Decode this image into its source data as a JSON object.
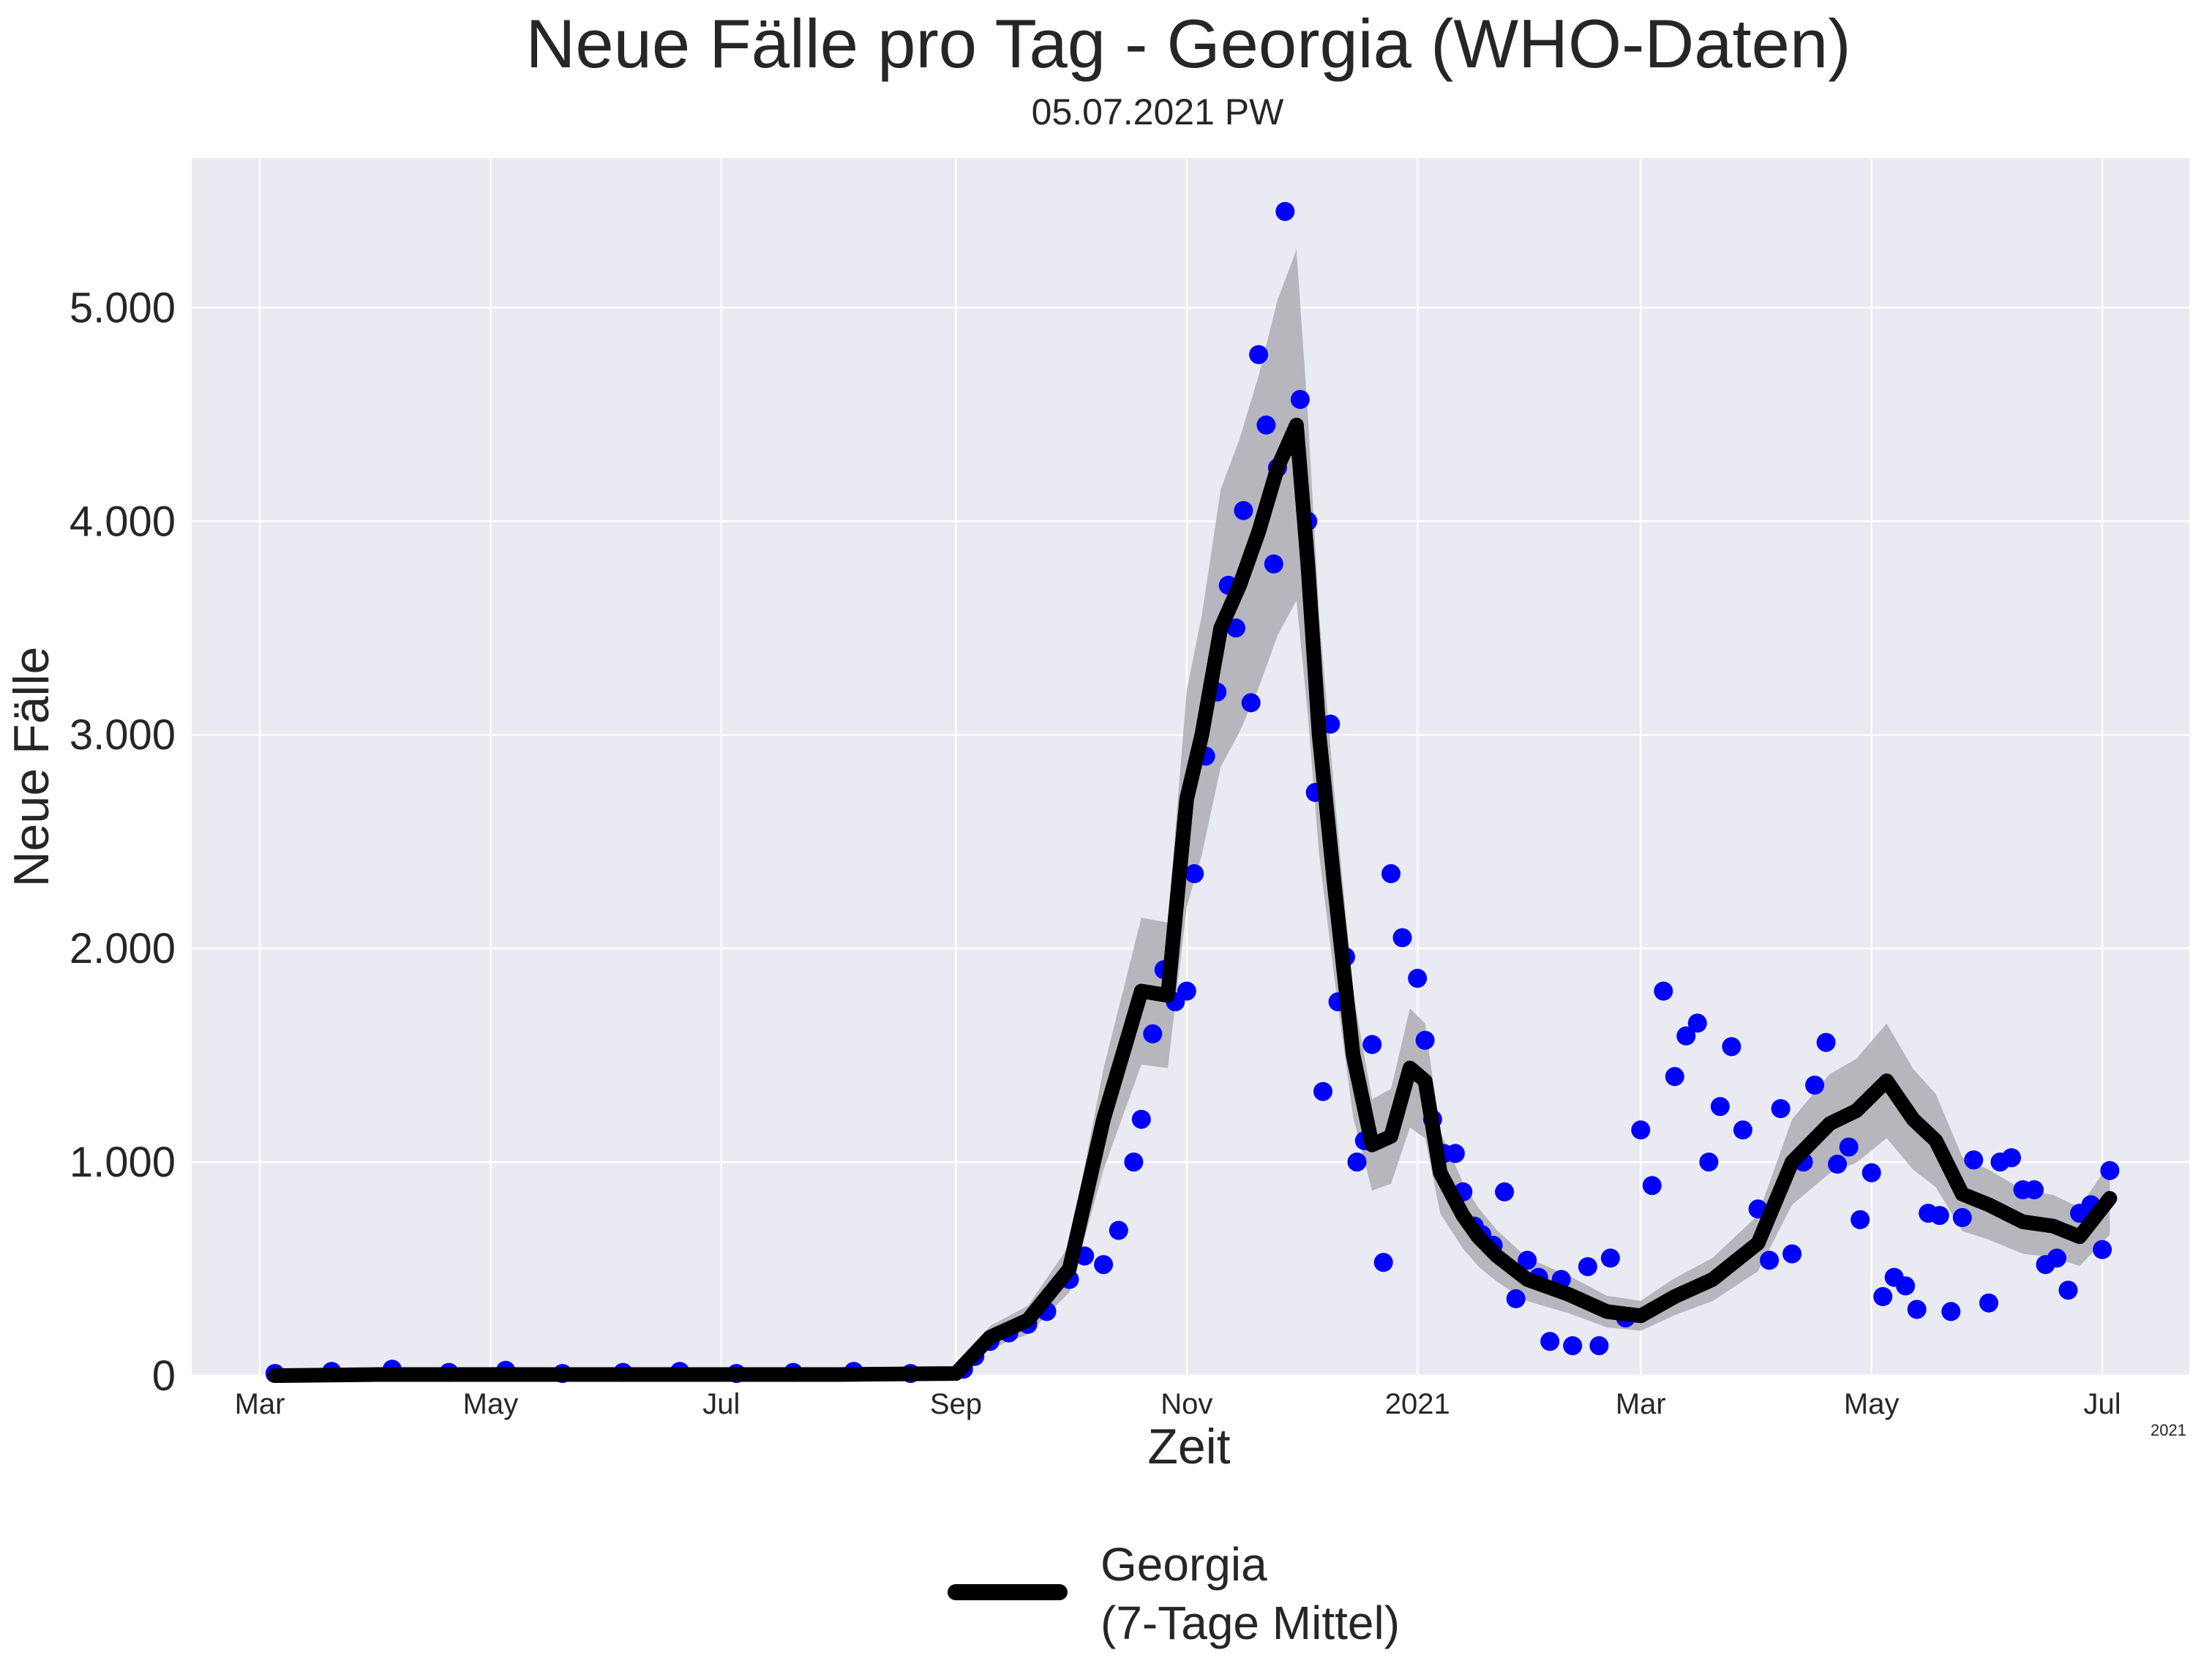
{
  "chart_data": {
    "type": "scatter",
    "title": "Neue Fälle pro Tag - Georgia (WHO-Daten)",
    "subtitle": "05.07.2021 PW",
    "xlabel": "Zeit",
    "ylabel": "Neue Fälle",
    "x_offset_note": "2021",
    "x_tick_labels": [
      "Mar",
      "May",
      "Jul",
      "Sep",
      "Nov",
      "2021",
      "Mar",
      "May",
      "Jul"
    ],
    "x_tick_dates": [
      "2020-03-01",
      "2020-05-01",
      "2020-07-01",
      "2020-09-01",
      "2020-11-01",
      "2021-01-01",
      "2021-03-01",
      "2021-05-01",
      "2021-07-01"
    ],
    "y_tick_labels": [
      "0",
      "1.000",
      "2.000",
      "3.000",
      "4.000",
      "5.000"
    ],
    "y_ticks": [
      0,
      1000,
      2000,
      3000,
      4000,
      5000
    ],
    "ylim": [
      0,
      5700
    ],
    "xlim": [
      "2020-02-12",
      "2021-07-24"
    ],
    "grid": true,
    "legend_position": "bottom-center",
    "colors": {
      "background": "#eaeaf2",
      "points": "#0000ff",
      "line": "#000000",
      "band": "#b3b3b8",
      "grid": "#ffffff"
    },
    "series": [
      {
        "name": "Georgia\n(7-Tage Mittel)",
        "kind": "line",
        "x": [
          "2020-03-05",
          "2020-04-01",
          "2020-05-01",
          "2020-06-01",
          "2020-07-01",
          "2020-08-01",
          "2020-09-01",
          "2020-09-10",
          "2020-09-20",
          "2020-10-01",
          "2020-10-10",
          "2020-10-20",
          "2020-10-27",
          "2020-11-01",
          "2020-11-05",
          "2020-11-10",
          "2020-11-15",
          "2020-11-20",
          "2020-11-25",
          "2020-11-30",
          "2020-12-03",
          "2020-12-06",
          "2020-12-10",
          "2020-12-15",
          "2020-12-20",
          "2020-12-25",
          "2020-12-30",
          "2021-01-03",
          "2021-01-07",
          "2021-01-10",
          "2021-01-13",
          "2021-01-17",
          "2021-01-22",
          "2021-01-30",
          "2021-02-10",
          "2021-02-20",
          "2021-03-01",
          "2021-03-10",
          "2021-03-20",
          "2021-04-01",
          "2021-04-10",
          "2021-04-20",
          "2021-04-27",
          "2021-05-05",
          "2021-05-12",
          "2021-05-15",
          "2021-05-18",
          "2021-05-25",
          "2021-06-01",
          "2021-06-10",
          "2021-06-18",
          "2021-06-25",
          "2021-07-03"
        ],
        "values": [
          0,
          5,
          5,
          5,
          5,
          5,
          10,
          180,
          260,
          500,
          1200,
          1800,
          1780,
          2700,
          3000,
          3500,
          3700,
          3950,
          4250,
          4450,
          3800,
          3000,
          2300,
          1500,
          1080,
          1120,
          1440,
          1380,
          950,
          850,
          750,
          650,
          560,
          450,
          380,
          300,
          280,
          370,
          450,
          620,
          1000,
          1180,
          1240,
          1380,
          1200,
          1150,
          1100,
          850,
          800,
          720,
          700,
          650,
          830
        ]
      },
      {
        "name": "",
        "kind": "points",
        "x": [
          "2020-03-05",
          "2020-03-20",
          "2020-04-05",
          "2020-04-20",
          "2020-05-05",
          "2020-05-20",
          "2020-06-05",
          "2020-06-20",
          "2020-07-05",
          "2020-07-20",
          "2020-08-05",
          "2020-08-20",
          "2020-09-03",
          "2020-09-06",
          "2020-09-10",
          "2020-09-15",
          "2020-09-20",
          "2020-09-25",
          "2020-10-01",
          "2020-10-05",
          "2020-10-10",
          "2020-10-14",
          "2020-10-18",
          "2020-10-20",
          "2020-10-23",
          "2020-10-26",
          "2020-10-29",
          "2020-11-01",
          "2020-11-03",
          "2020-11-06",
          "2020-11-09",
          "2020-11-12",
          "2020-11-14",
          "2020-11-16",
          "2020-11-18",
          "2020-11-20",
          "2020-11-22",
          "2020-11-24",
          "2020-11-25",
          "2020-11-27",
          "2020-11-29",
          "2020-12-01",
          "2020-12-03",
          "2020-12-05",
          "2020-12-07",
          "2020-12-09",
          "2020-12-11",
          "2020-12-13",
          "2020-12-16",
          "2020-12-18",
          "2020-12-20",
          "2020-12-23",
          "2020-12-25",
          "2020-12-28",
          "2021-01-01",
          "2021-01-03",
          "2021-01-05",
          "2021-01-08",
          "2021-01-11",
          "2021-01-13",
          "2021-01-16",
          "2021-01-18",
          "2021-01-21",
          "2021-01-24",
          "2021-01-27",
          "2021-01-30",
          "2021-02-02",
          "2021-02-05",
          "2021-02-08",
          "2021-02-11",
          "2021-02-15",
          "2021-02-18",
          "2021-02-21",
          "2021-02-25",
          "2021-03-01",
          "2021-03-04",
          "2021-03-07",
          "2021-03-10",
          "2021-03-13",
          "2021-03-16",
          "2021-03-19",
          "2021-03-22",
          "2021-03-25",
          "2021-03-28",
          "2021-04-01",
          "2021-04-04",
          "2021-04-07",
          "2021-04-10",
          "2021-04-13",
          "2021-04-16",
          "2021-04-19",
          "2021-04-22",
          "2021-04-25",
          "2021-04-28",
          "2021-05-01",
          "2021-05-04",
          "2021-05-07",
          "2021-05-10",
          "2021-05-13",
          "2021-05-16",
          "2021-05-19",
          "2021-05-22",
          "2021-05-25",
          "2021-05-28",
          "2021-06-01",
          "2021-06-04",
          "2021-06-07",
          "2021-06-10",
          "2021-06-13",
          "2021-06-16",
          "2021-06-19",
          "2021-06-22",
          "2021-06-25",
          "2021-06-28",
          "2021-07-01",
          "2021-07-03"
        ],
        "values": [
          10,
          20,
          30,
          15,
          25,
          10,
          15,
          20,
          10,
          15,
          20,
          10,
          30,
          90,
          160,
          200,
          240,
          300,
          450,
          560,
          520,
          680,
          1000,
          1200,
          1600,
          1900,
          1750,
          1800,
          2350,
          2900,
          3200,
          3700,
          3500,
          4050,
          3150,
          4780,
          4450,
          3800,
          4250,
          5450,
          4350,
          4570,
          4000,
          2730,
          1330,
          3050,
          1750,
          1960,
          1000,
          1100,
          1550,
          530,
          2350,
          2050,
          1860,
          1570,
          1200,
          1040,
          1040,
          860,
          700,
          660,
          610,
          860,
          360,
          540,
          460,
          160,
          450,
          140,
          510,
          140,
          550,
          270,
          1150,
          890,
          1800,
          1400,
          1590,
          1650,
          1000,
          1260,
          1540,
          1150,
          780,
          540,
          1250,
          570,
          1000,
          1360,
          1560,
          990,
          1070,
          730,
          950,
          370,
          460,
          420,
          310,
          760,
          750,
          300,
          740,
          1010,
          340,
          1000,
          1020,
          870,
          870,
          520,
          550,
          400,
          760,
          800,
          590,
          960
        ]
      }
    ]
  },
  "legend": {
    "label_line1": "Georgia",
    "label_line2": "(7-Tage Mittel)"
  }
}
